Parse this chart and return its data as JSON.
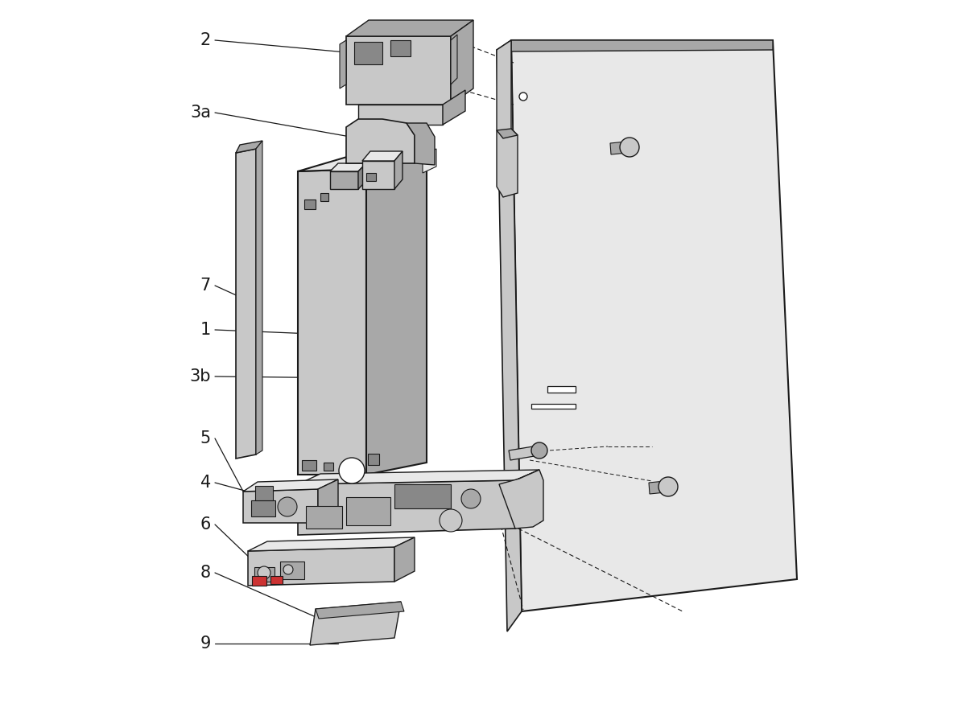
{
  "bg": "#ffffff",
  "lc": "#1a1a1a",
  "fl": "#c8c8c8",
  "fm": "#a8a8a8",
  "fd": "#888888",
  "fe": "#e8e8e8"
}
